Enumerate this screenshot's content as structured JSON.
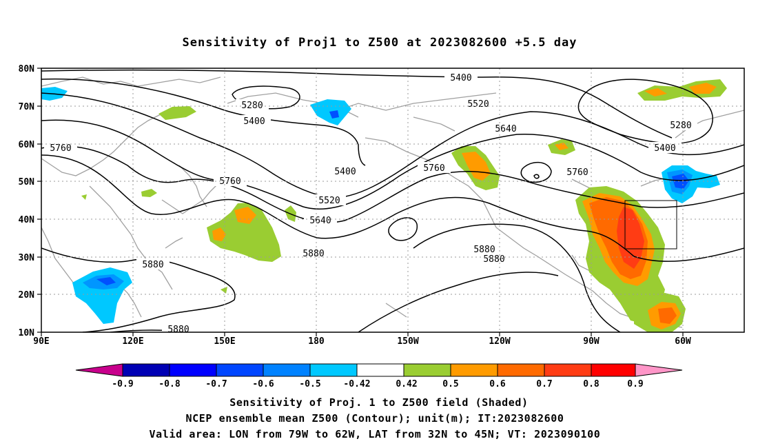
{
  "title": "Sensitivity of Proj1 to Z500 at 2023082600 +5.5 day",
  "map": {
    "lat_ticks": [
      "80N",
      "70N",
      "60N",
      "50N",
      "40N",
      "30N",
      "20N",
      "10N"
    ],
    "lon_ticks": [
      "90E",
      "120E",
      "150E",
      "180",
      "150W",
      "120W",
      "90W",
      "60W"
    ],
    "contour_labels": [
      "5400",
      "5280",
      "5400",
      "5520",
      "5640",
      "5280",
      "5400",
      "5760",
      "5760",
      "5400",
      "5520",
      "5760",
      "5760",
      "5640",
      "5880",
      "5880",
      "5880",
      "5880",
      "5880"
    ],
    "colors": {
      "cyan": "#00c8ff",
      "light_blue": "#0096ff",
      "blue": "#0050ff",
      "green": "#9acd32",
      "orange_light": "#ff9b00",
      "orange": "#ff6a00",
      "red_orange": "#ff3c14",
      "contour": "#000000",
      "coast": "#a0a0a0"
    }
  },
  "colorbar": {
    "labels": [
      "-0.9",
      "-0.8",
      "-0.7",
      "-0.6",
      "-0.5",
      "-0.42",
      "0.42",
      "0.5",
      "0.6",
      "0.7",
      "0.8",
      "0.9"
    ],
    "colors": [
      "#c8008c",
      "#0000b4",
      "#0000ff",
      "#0046ff",
      "#0082ff",
      "#00c8ff",
      "#ffffff",
      "#9acd32",
      "#ff9b00",
      "#ff6a00",
      "#ff3c14",
      "#ff0000",
      "#ff96c8"
    ]
  },
  "footer": {
    "line1": "Sensitivity of Proj. 1 to Z500 field (Shaded)",
    "line2": "NCEP ensemble mean Z500 (Contour); unit(m); IT:2023082600",
    "line3": "Valid area: LON from 79W to 62W, LAT from 32N to 45N; VT: 2023090100"
  }
}
